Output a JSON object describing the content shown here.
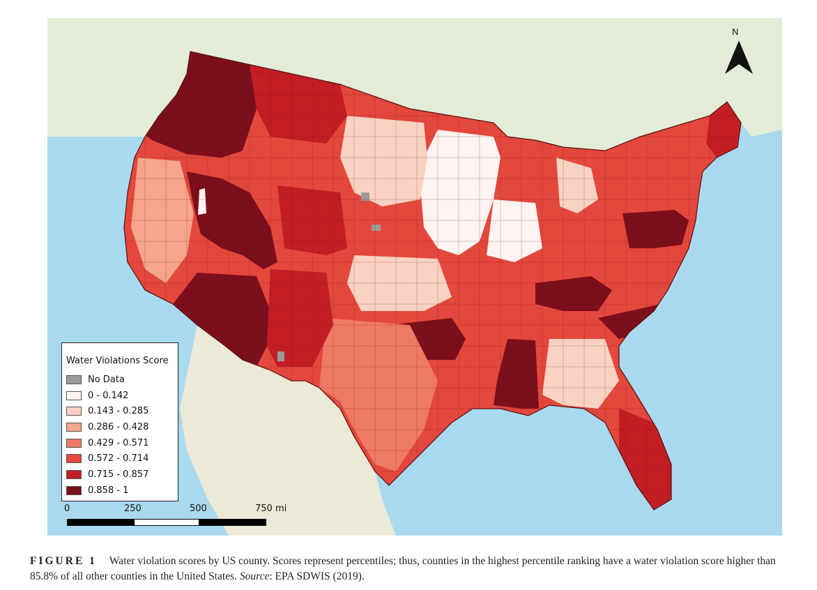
{
  "map": {
    "north_label": "N",
    "colors": {
      "ocean": "#a9d9ee",
      "land": "#e6eedc",
      "no_data": "#9a9a9a",
      "class_1": "#fdf3f0",
      "class_2": "#fad2c2",
      "class_3": "#f4a58a",
      "class_4": "#ef7a64",
      "class_5": "#e4473c",
      "class_6": "#c31e24",
      "class_7": "#7c0f1c"
    }
  },
  "legend": {
    "title": "Water Violations Score",
    "items": [
      {
        "label": "No Data",
        "color": "#9a9a9a"
      },
      {
        "label": "0 - 0.142",
        "color": "#fdf3f0"
      },
      {
        "label": "0.143 - 0.285",
        "color": "#fad2c2"
      },
      {
        "label": "0.286 - 0.428",
        "color": "#f4a58a"
      },
      {
        "label": "0.429 - 0.571",
        "color": "#ef7a64"
      },
      {
        "label": "0.572 - 0.714",
        "color": "#e4473c"
      },
      {
        "label": "0.715 - 0.857",
        "color": "#c31e24"
      },
      {
        "label": "0.858 - 1",
        "color": "#7c0f1c"
      }
    ]
  },
  "scale_bar": {
    "ticks": [
      "0",
      "250",
      "500",
      "750 mi"
    ]
  },
  "caption": {
    "figure_label": "FIGURE 1",
    "text": "Water violation scores by US county. Scores represent percentiles; thus, counties in the highest percentile ranking have a water violation score higher than 85.8% of all other counties in the United States.",
    "source_label": "Source",
    "source_text": ": EPA SDWIS (2019)."
  }
}
